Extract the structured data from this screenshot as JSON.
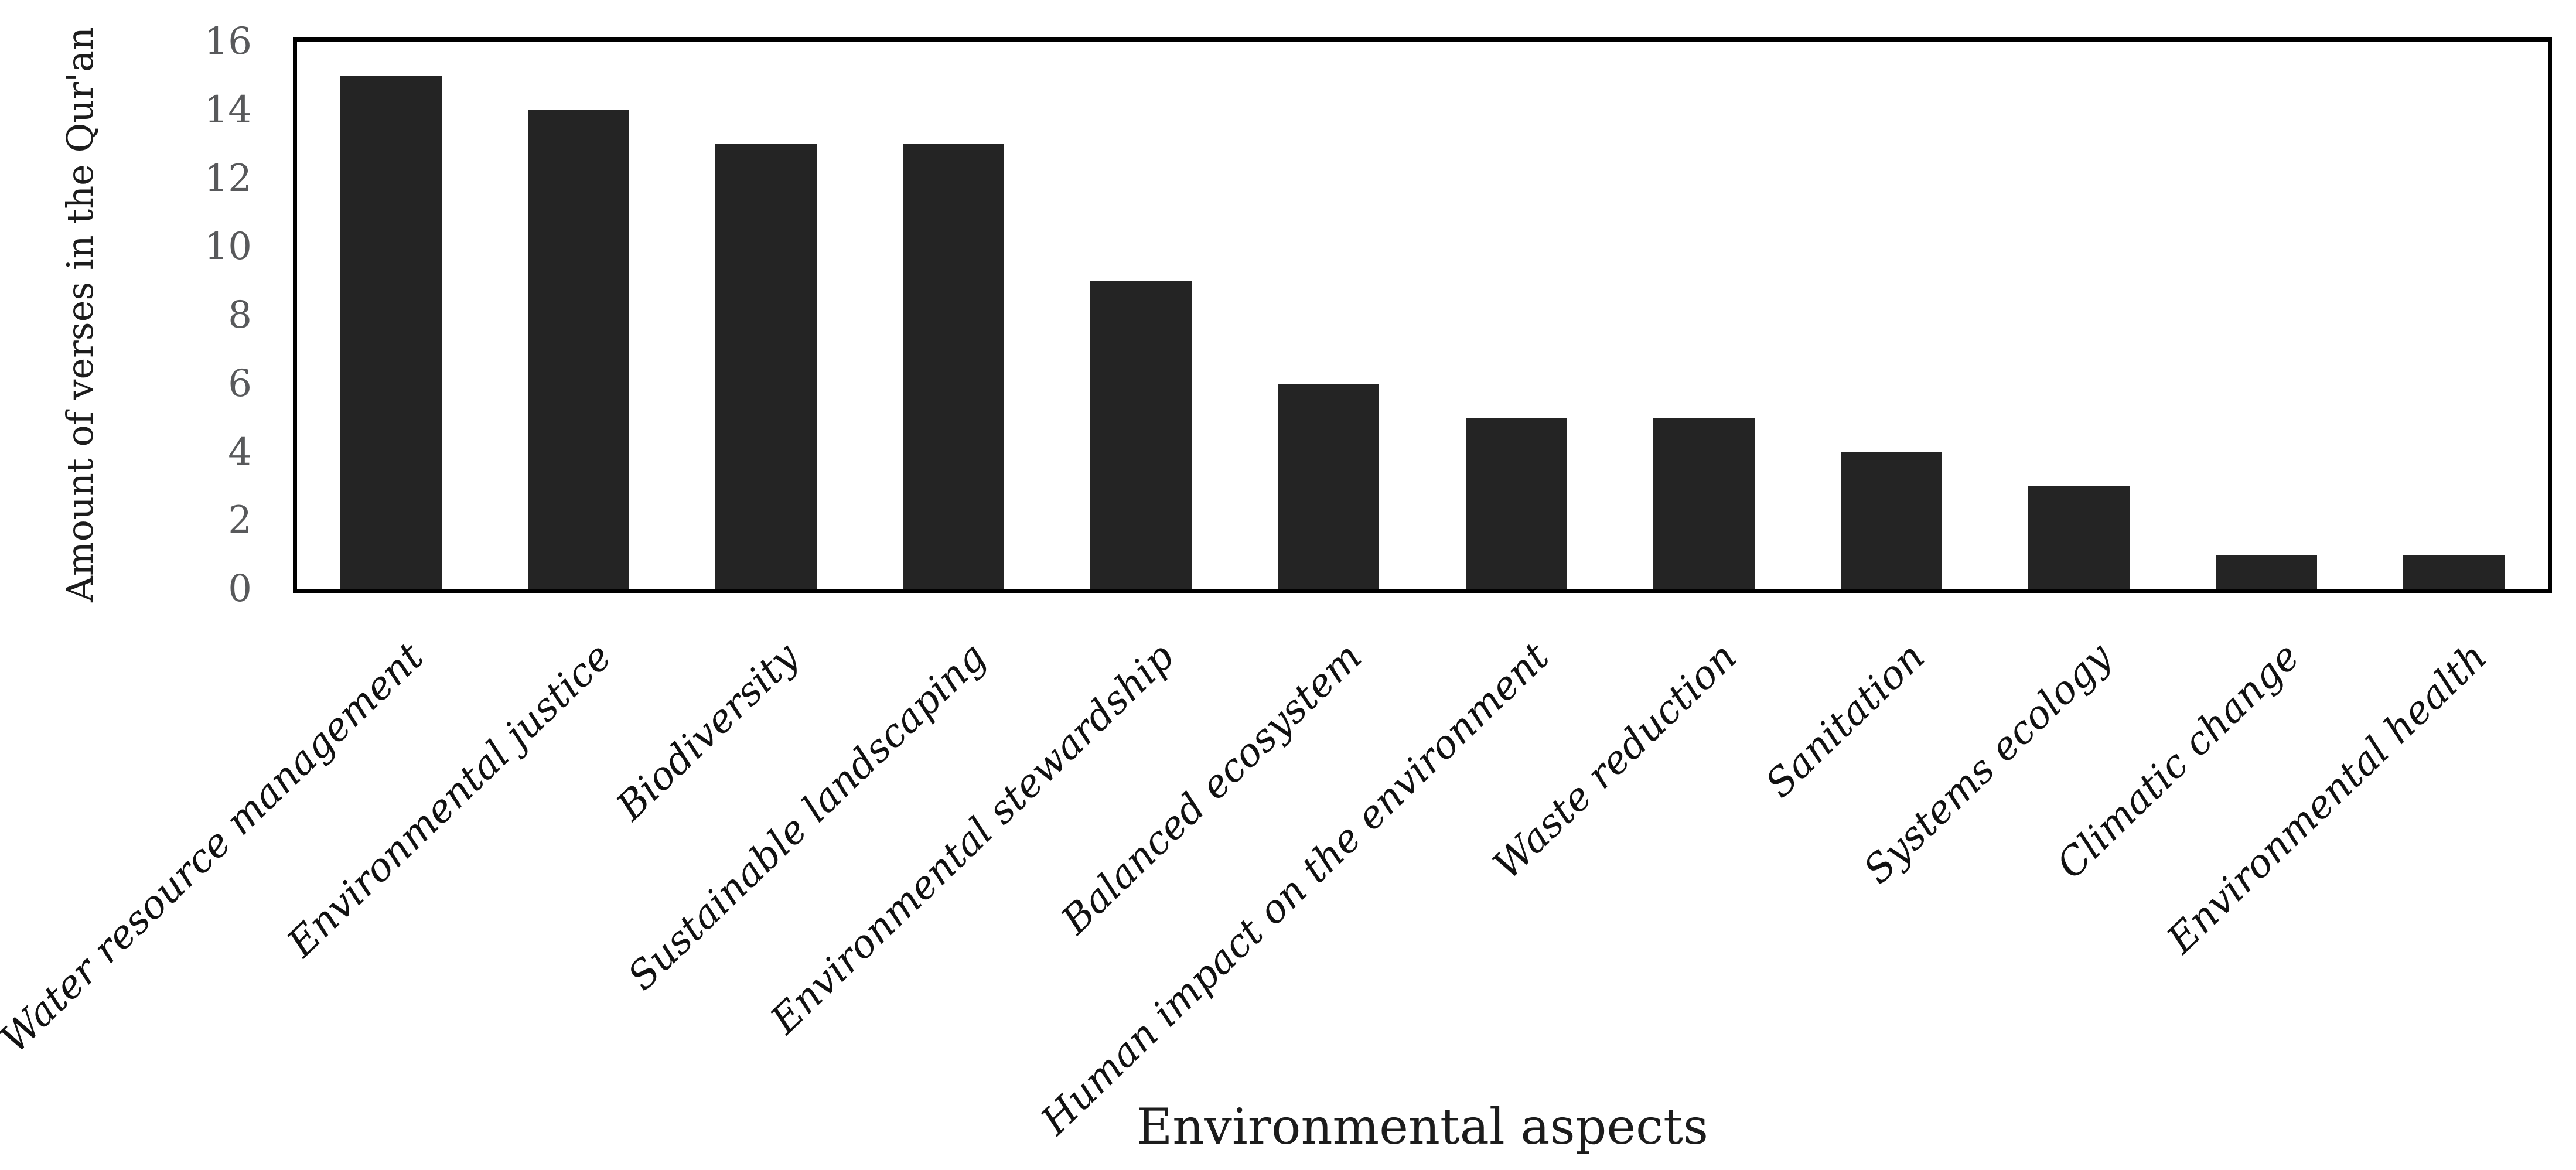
{
  "chart_data": {
    "type": "bar",
    "title": "",
    "xlabel": "Environmental aspects",
    "ylabel": "Amount of verses in the Qur'an",
    "categories": [
      "Water resource management",
      "Environmental justice",
      "Biodiversity",
      "Sustainable landscaping",
      "Environmental stewardship",
      "Balanced ecosystem",
      "Human impact on the environment",
      "Waste reduction",
      "Sanitation",
      "Systems ecology",
      "Climatic change",
      "Environmental health"
    ],
    "values": [
      15,
      14,
      13,
      13,
      9,
      6,
      5,
      5,
      4,
      3,
      1,
      1
    ],
    "ylim": [
      0,
      16
    ],
    "yticks": [
      0,
      2,
      4,
      6,
      8,
      10,
      12,
      14,
      16
    ],
    "grid": false,
    "legend": "none",
    "category_label_rotation_deg": 44,
    "background": "#ffffff",
    "bar_color": "#242424",
    "frame_color": "#000000",
    "tick_label_color": "#58595b",
    "category_label_color": "#111111",
    "axis_title_color": "#1c1c1c"
  }
}
